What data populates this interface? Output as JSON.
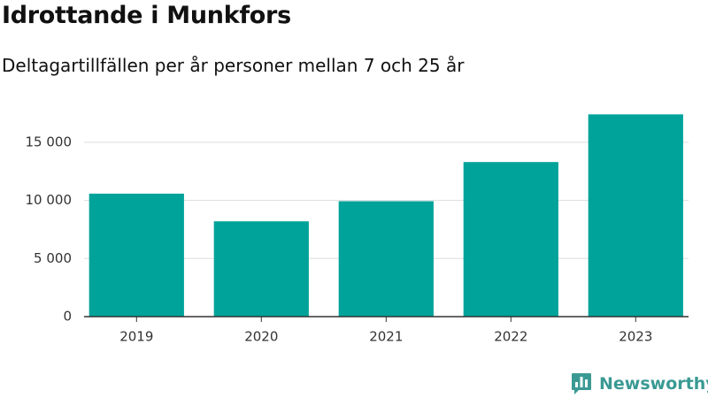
{
  "chart_data": {
    "type": "bar",
    "title": "Idrottande i Munkfors",
    "subtitle": "Deltagartillfällen per år personer mellan 7 och 25 år",
    "categories": [
      "2019",
      "2020",
      "2021",
      "2022",
      "2023"
    ],
    "values": [
      10580,
      8200,
      9930,
      13300,
      17400
    ],
    "yticks": [
      0,
      5000,
      10000,
      15000
    ],
    "ytick_labels": [
      "0",
      "5 000",
      "10 000",
      "15 000"
    ],
    "ylim": [
      0,
      17500
    ],
    "xlabel": "",
    "ylabel": "",
    "grid": "horizontal",
    "bar_color": "#00a39a",
    "grid_color": "#dddddd",
    "axis_color": "#333333"
  },
  "brand": {
    "name": "Newsworthy",
    "color": "#3a9a93",
    "icon": "bar-chart-speech-bubble-icon"
  }
}
